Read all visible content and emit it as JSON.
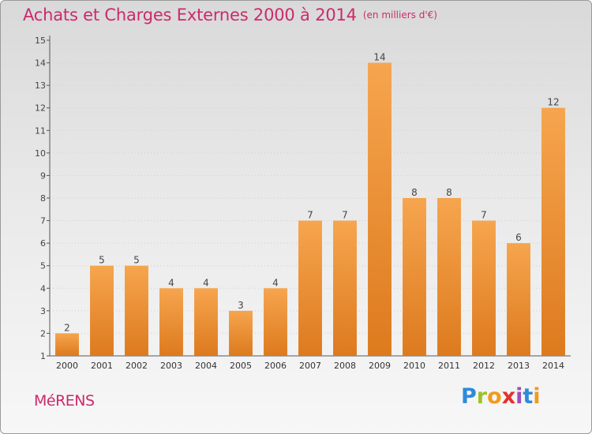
{
  "title": "Achats et Charges Externes 2000 à 2014",
  "title_unit": "(en milliers d'€)",
  "commune": "MéRENS",
  "logo": {
    "text": "Proxiti",
    "letters": [
      "P",
      "r",
      "o",
      "x",
      "i",
      "t",
      "i"
    ]
  },
  "colors": {
    "accent": "#cc2a6b",
    "bar_top": "#f6a54e",
    "bar_bottom": "#dd7a1e"
  },
  "chart_data": {
    "type": "bar",
    "title": "Achats et Charges Externes 2000 à 2014",
    "xlabel": "",
    "ylabel": "",
    "categories": [
      "2000",
      "2001",
      "2002",
      "2003",
      "2004",
      "2005",
      "2006",
      "2007",
      "2008",
      "2009",
      "2010",
      "2011",
      "2012",
      "2013",
      "2014"
    ],
    "values": [
      2,
      5,
      5,
      4,
      4,
      3,
      4,
      7,
      7,
      14,
      8,
      8,
      7,
      6,
      12
    ],
    "ylim": [
      1,
      15
    ],
    "yticks": [
      1,
      2,
      3,
      4,
      5,
      6,
      7,
      8,
      9,
      10,
      11,
      12,
      13,
      14,
      15
    ],
    "grid": true
  }
}
